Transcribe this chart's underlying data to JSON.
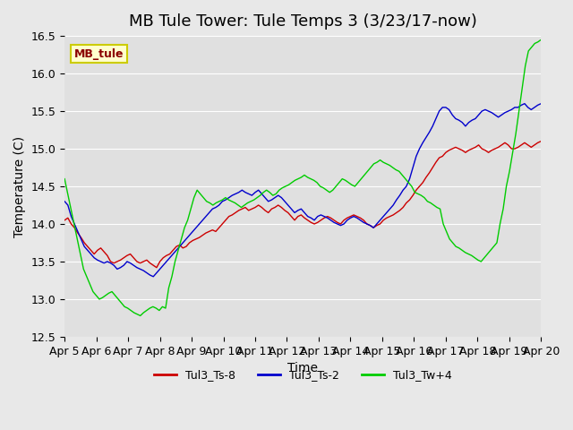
{
  "title": "MB Tule Tower: Tule Temps 3 (3/23/17-now)",
  "xlabel": "Time",
  "ylabel": "Temperature (C)",
  "ylim": [
    12.5,
    16.5
  ],
  "x_tick_labels": [
    "Apr 5",
    "Apr 6",
    "Apr 7",
    "Apr 8",
    "Apr 9",
    "Apr 10",
    "Apr 11",
    "Apr 12",
    "Apr 13",
    "Apr 14",
    "Apr 15",
    "Apr 16",
    "Apr 17",
    "Apr 18",
    "Apr 19",
    "Apr 20"
  ],
  "legend_label": "MB_tule",
  "series_labels": [
    "Tul3_Ts-8",
    "Tul3_Ts-2",
    "Tul3_Tw+4"
  ],
  "series_colors": [
    "#cc0000",
    "#0000cc",
    "#00cc00"
  ],
  "title_fontsize": 13,
  "axis_fontsize": 10,
  "tick_fontsize": 9,
  "red_y": [
    14.05,
    14.08,
    14.0,
    13.95,
    13.88,
    13.82,
    13.75,
    13.7,
    13.65,
    13.6,
    13.65,
    13.68,
    13.63,
    13.58,
    13.5,
    13.48,
    13.5,
    13.52,
    13.55,
    13.58,
    13.6,
    13.55,
    13.5,
    13.48,
    13.5,
    13.52,
    13.48,
    13.45,
    13.42,
    13.5,
    13.55,
    13.58,
    13.6,
    13.65,
    13.7,
    13.72,
    13.68,
    13.7,
    13.75,
    13.78,
    13.8,
    13.82,
    13.85,
    13.88,
    13.9,
    13.92,
    13.9,
    13.95,
    14.0,
    14.05,
    14.1,
    14.12,
    14.15,
    14.18,
    14.2,
    14.22,
    14.18,
    14.2,
    14.22,
    14.25,
    14.22,
    14.18,
    14.15,
    14.2,
    14.22,
    14.25,
    14.22,
    14.18,
    14.15,
    14.1,
    14.05,
    14.1,
    14.12,
    14.08,
    14.05,
    14.02,
    14.0,
    14.02,
    14.05,
    14.08,
    14.1,
    14.08,
    14.05,
    14.02,
    14.0,
    14.05,
    14.08,
    14.1,
    14.12,
    14.1,
    14.08,
    14.05,
    14.0,
    13.98,
    13.95,
    13.98,
    14.0,
    14.05,
    14.08,
    14.1,
    14.12,
    14.15,
    14.18,
    14.22,
    14.28,
    14.32,
    14.38,
    14.45,
    14.5,
    14.55,
    14.62,
    14.68,
    14.75,
    14.82,
    14.88,
    14.9,
    14.95,
    14.98,
    15.0,
    15.02,
    15.0,
    14.98,
    14.95,
    14.98,
    15.0,
    15.02,
    15.05,
    15.0,
    14.98,
    14.95,
    14.98,
    15.0,
    15.02,
    15.05,
    15.08,
    15.05,
    15.0,
    15.0,
    15.02,
    15.05,
    15.08,
    15.05,
    15.02,
    15.05,
    15.08,
    15.1
  ],
  "blue_y": [
    14.3,
    14.25,
    14.1,
    14.0,
    13.9,
    13.8,
    13.7,
    13.65,
    13.6,
    13.55,
    13.52,
    13.5,
    13.48,
    13.5,
    13.48,
    13.45,
    13.4,
    13.42,
    13.45,
    13.5,
    13.48,
    13.45,
    13.42,
    13.4,
    13.38,
    13.35,
    13.32,
    13.3,
    13.35,
    13.4,
    13.45,
    13.5,
    13.55,
    13.6,
    13.65,
    13.7,
    13.75,
    13.8,
    13.85,
    13.9,
    13.95,
    14.0,
    14.05,
    14.1,
    14.15,
    14.2,
    14.22,
    14.25,
    14.3,
    14.32,
    14.35,
    14.38,
    14.4,
    14.42,
    14.45,
    14.42,
    14.4,
    14.38,
    14.42,
    14.45,
    14.4,
    14.35,
    14.3,
    14.32,
    14.35,
    14.38,
    14.35,
    14.3,
    14.25,
    14.2,
    14.15,
    14.18,
    14.2,
    14.15,
    14.1,
    14.08,
    14.05,
    14.1,
    14.12,
    14.1,
    14.08,
    14.05,
    14.02,
    14.0,
    13.98,
    14.0,
    14.05,
    14.08,
    14.1,
    14.08,
    14.05,
    14.02,
    14.0,
    13.98,
    13.95,
    14.0,
    14.05,
    14.1,
    14.15,
    14.2,
    14.25,
    14.32,
    14.38,
    14.45,
    14.5,
    14.6,
    14.75,
    14.9,
    15.0,
    15.08,
    15.15,
    15.22,
    15.3,
    15.4,
    15.5,
    15.55,
    15.55,
    15.52,
    15.45,
    15.4,
    15.38,
    15.35,
    15.3,
    15.35,
    15.38,
    15.4,
    15.45,
    15.5,
    15.52,
    15.5,
    15.48,
    15.45,
    15.42,
    15.45,
    15.48,
    15.5,
    15.52,
    15.55,
    15.55,
    15.58,
    15.6,
    15.55,
    15.52,
    15.55,
    15.58,
    15.6
  ],
  "green_y": [
    14.6,
    14.4,
    14.2,
    14.0,
    13.8,
    13.6,
    13.4,
    13.3,
    13.2,
    13.1,
    13.05,
    13.0,
    13.02,
    13.05,
    13.08,
    13.1,
    13.05,
    13.0,
    12.95,
    12.9,
    12.88,
    12.85,
    12.82,
    12.8,
    12.78,
    12.82,
    12.85,
    12.88,
    12.9,
    12.88,
    12.85,
    12.9,
    12.88,
    13.15,
    13.3,
    13.5,
    13.65,
    13.8,
    13.95,
    14.05,
    14.2,
    14.35,
    14.45,
    14.4,
    14.35,
    14.3,
    14.28,
    14.25,
    14.28,
    14.3,
    14.32,
    14.35,
    14.32,
    14.3,
    14.28,
    14.25,
    14.22,
    14.25,
    14.28,
    14.3,
    14.32,
    14.35,
    14.38,
    14.42,
    14.45,
    14.42,
    14.38,
    14.4,
    14.45,
    14.48,
    14.5,
    14.52,
    14.55,
    14.58,
    14.6,
    14.62,
    14.65,
    14.62,
    14.6,
    14.58,
    14.55,
    14.5,
    14.48,
    14.45,
    14.42,
    14.45,
    14.5,
    14.55,
    14.6,
    14.58,
    14.55,
    14.52,
    14.5,
    14.55,
    14.6,
    14.65,
    14.7,
    14.75,
    14.8,
    14.82,
    14.85,
    14.82,
    14.8,
    14.78,
    14.75,
    14.72,
    14.7,
    14.65,
    14.6,
    14.55,
    14.5,
    14.42,
    14.4,
    14.38,
    14.35,
    14.3,
    14.28,
    14.25,
    14.22,
    14.2,
    14.0,
    13.9,
    13.8,
    13.75,
    13.7,
    13.68,
    13.65,
    13.62,
    13.6,
    13.58,
    13.55,
    13.52,
    13.5,
    13.55,
    13.6,
    13.65,
    13.7,
    13.75,
    14.0,
    14.2,
    14.5,
    14.7,
    14.95,
    15.2,
    15.5,
    15.8,
    16.1,
    16.3,
    16.35,
    16.4,
    16.42,
    16.45
  ]
}
